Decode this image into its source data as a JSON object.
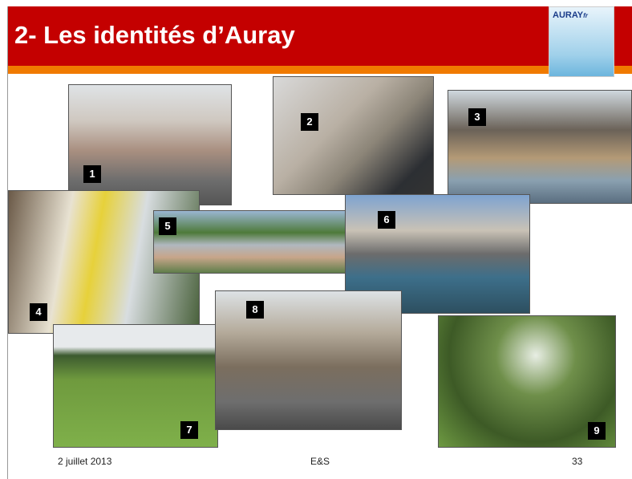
{
  "header": {
    "title": "2- Les identités d’Auray",
    "logo": "AURAY",
    "logo_suffix": "fr"
  },
  "photos": [
    {
      "label": "1"
    },
    {
      "label": "2"
    },
    {
      "label": "3"
    },
    {
      "label": "4"
    },
    {
      "label": "5"
    },
    {
      "label": "6"
    },
    {
      "label": "7"
    },
    {
      "label": "8"
    },
    {
      "label": "9"
    }
  ],
  "footer": {
    "date": "2 juillet 2013",
    "center": "E&S",
    "page": "33"
  }
}
